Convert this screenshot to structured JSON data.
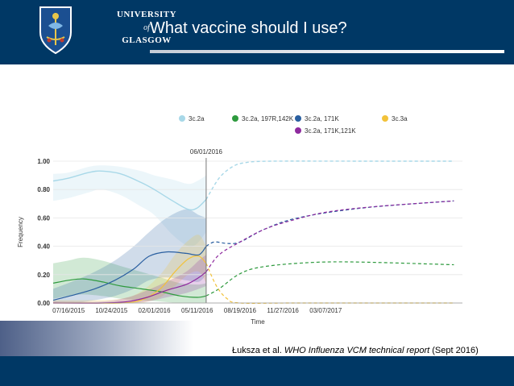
{
  "header": {
    "title": "What vaccine should I use?",
    "logo_line1": "UNIVERSITY",
    "logo_line2": "of",
    "logo_line3": "GLASGOW",
    "bg_color": "#003865"
  },
  "citation": {
    "author": "Łuksza et al.",
    "journal": "WHO Influenza VCM technical report",
    "date": "(Sept 2016)"
  },
  "chart_data": {
    "type": "line",
    "title": "",
    "xlabel": "Time",
    "ylabel": "Frequency",
    "ylim": [
      0,
      1
    ],
    "xlim": [
      "2015-06-10",
      "2018-01-20"
    ],
    "yticks": [
      "0.00",
      "0.20",
      "0.40",
      "0.60",
      "0.80",
      "1.00"
    ],
    "ytick_values": [
      0,
      0.2,
      0.4,
      0.6,
      0.8,
      1.0
    ],
    "xticks": [
      "07/16/2015",
      "10/24/2015",
      "02/01/2016",
      "05/11/2016",
      "08/19/2016",
      "11/27/2016",
      "03/07/2017"
    ],
    "xtick_dates": [
      "2015-07-16",
      "2015-10-24",
      "2016-02-01",
      "2016-05-11",
      "2016-08-19",
      "2016-11-27",
      "2017-03-07"
    ],
    "divider": {
      "date": "2016-06-01",
      "label": "06/01/2016"
    },
    "legend": [
      {
        "name": "3c.2a",
        "color": "#a8d8e8"
      },
      {
        "name": "3c.2a, 197R,142K",
        "color": "#2e9a3e"
      },
      {
        "name": "3c.2a, 171K",
        "color": "#2a5fa0"
      },
      {
        "name": "3c.3a",
        "color": "#f2c23a"
      },
      {
        "name": "3c.2a, 171K,121K",
        "color": "#8e2a9e"
      }
    ],
    "series": [
      {
        "name": "3c.2a",
        "color": "#a8d8e8",
        "observed": {
          "x": [
            "2015-06-10",
            "2015-07-16",
            "2015-09-01",
            "2015-10-01",
            "2015-11-15",
            "2016-01-01",
            "2016-02-01",
            "2016-03-15",
            "2016-04-20",
            "2016-05-11",
            "2016-06-01"
          ],
          "y": [
            0.86,
            0.88,
            0.92,
            0.93,
            0.91,
            0.85,
            0.8,
            0.72,
            0.66,
            0.67,
            0.73
          ]
        },
        "band": {
          "upper": [
            0.91,
            0.92,
            0.96,
            0.97,
            0.96,
            0.93,
            0.9,
            0.87,
            0.84,
            0.86,
            0.9
          ],
          "lower": [
            0.72,
            0.74,
            0.78,
            0.8,
            0.76,
            0.68,
            0.62,
            0.48,
            0.4,
            0.42,
            0.5
          ]
        },
        "forecast": {
          "x": [
            "2016-06-01",
            "2016-07-01",
            "2016-08-01",
            "2016-09-01",
            "2016-11-01",
            "2017-06-01",
            "2017-12-31"
          ],
          "y": [
            0.73,
            0.88,
            0.96,
            0.99,
            1.0,
            1.0,
            1.0
          ]
        }
      },
      {
        "name": "3c.2a, 197R,142K",
        "color": "#2e9a3e",
        "observed": {
          "x": [
            "2015-06-10",
            "2015-07-16",
            "2015-08-20",
            "2015-10-01",
            "2015-11-15",
            "2016-01-01",
            "2016-02-15",
            "2016-04-01",
            "2016-05-11",
            "2016-06-01"
          ],
          "y": [
            0.14,
            0.16,
            0.17,
            0.15,
            0.12,
            0.1,
            0.08,
            0.05,
            0.04,
            0.05
          ]
        },
        "band": {
          "upper": [
            0.28,
            0.3,
            0.32,
            0.3,
            0.26,
            0.22,
            0.18,
            0.14,
            0.13,
            0.14
          ],
          "lower": [
            0.03,
            0.05,
            0.06,
            0.05,
            0.03,
            0.02,
            0.01,
            0.0,
            0.0,
            0.0
          ]
        },
        "forecast": {
          "x": [
            "2016-06-01",
            "2016-07-01",
            "2016-08-15",
            "2016-10-01",
            "2017-01-01",
            "2017-05-01",
            "2017-12-31"
          ],
          "y": [
            0.05,
            0.1,
            0.2,
            0.25,
            0.28,
            0.29,
            0.27
          ]
        }
      },
      {
        "name": "3c.2a, 171K",
        "color": "#2a5fa0",
        "observed": {
          "x": [
            "2015-06-10",
            "2015-08-01",
            "2015-09-15",
            "2015-11-01",
            "2015-12-15",
            "2016-01-20",
            "2016-03-01",
            "2016-04-15",
            "2016-05-15",
            "2016-06-01"
          ],
          "y": [
            0.02,
            0.06,
            0.1,
            0.16,
            0.24,
            0.33,
            0.36,
            0.35,
            0.34,
            0.4
          ]
        },
        "band": {
          "upper": [
            0.1,
            0.16,
            0.22,
            0.3,
            0.4,
            0.5,
            0.6,
            0.66,
            0.62,
            0.6
          ],
          "lower": [
            0.0,
            0.0,
            0.02,
            0.05,
            0.1,
            0.16,
            0.18,
            0.16,
            0.15,
            0.2
          ]
        },
        "forecast": {
          "x": [
            "2016-06-01",
            "2016-06-20",
            "2016-07-20",
            "2016-08-19",
            "2016-10-15",
            "2017-01-01",
            "2017-06-01",
            "2017-12-31"
          ],
          "y": [
            0.4,
            0.43,
            0.42,
            0.43,
            0.52,
            0.6,
            0.67,
            0.72
          ]
        }
      },
      {
        "name": "3c.3a",
        "color": "#f2c23a",
        "observed": {
          "x": [
            "2015-06-10",
            "2015-09-01",
            "2015-11-15",
            "2016-01-01",
            "2016-02-15",
            "2016-03-20",
            "2016-04-20",
            "2016-05-15",
            "2016-06-01"
          ],
          "y": [
            0.0,
            0.0,
            0.0,
            0.02,
            0.1,
            0.22,
            0.31,
            0.33,
            0.28
          ]
        },
        "band": {
          "upper": [
            0.02,
            0.02,
            0.03,
            0.08,
            0.2,
            0.34,
            0.44,
            0.48,
            0.4
          ],
          "lower": [
            0.0,
            0.0,
            0.0,
            0.0,
            0.04,
            0.12,
            0.2,
            0.22,
            0.14
          ]
        },
        "forecast": {
          "x": [
            "2016-06-01",
            "2016-06-25",
            "2016-07-20",
            "2016-08-19",
            "2017-01-01",
            "2017-12-31"
          ],
          "y": [
            0.28,
            0.12,
            0.03,
            0.0,
            0.0,
            0.0
          ]
        }
      },
      {
        "name": "3c.2a, 171K,121K",
        "color": "#8e2a9e",
        "observed": {
          "x": [
            "2015-06-10",
            "2015-10-01",
            "2015-12-01",
            "2016-01-15",
            "2016-03-01",
            "2016-04-15",
            "2016-05-15",
            "2016-06-01"
          ],
          "y": [
            0.0,
            0.0,
            0.01,
            0.04,
            0.09,
            0.13,
            0.18,
            0.22
          ]
        },
        "band": {
          "upper": [
            0.01,
            0.01,
            0.04,
            0.09,
            0.15,
            0.22,
            0.3,
            0.34
          ],
          "lower": [
            0.0,
            0.0,
            0.0,
            0.01,
            0.04,
            0.07,
            0.1,
            0.12
          ]
        },
        "forecast": {
          "x": [
            "2016-06-01",
            "2016-07-01",
            "2016-08-19",
            "2016-10-15",
            "2016-12-15",
            "2017-03-07",
            "2017-07-01",
            "2017-12-31"
          ],
          "y": [
            0.22,
            0.34,
            0.43,
            0.52,
            0.58,
            0.64,
            0.68,
            0.72
          ]
        }
      }
    ]
  }
}
